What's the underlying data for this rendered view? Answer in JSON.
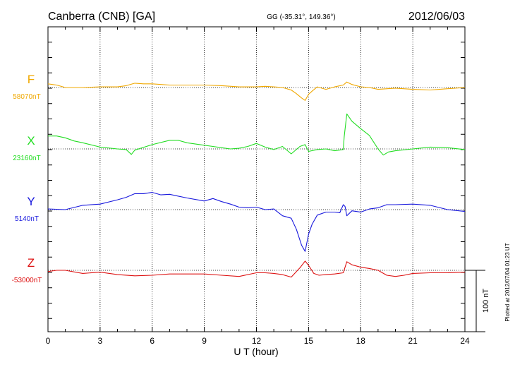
{
  "chart_data": {
    "type": "line",
    "title": "Canberra (CNB)  [GA]",
    "subtitle": "GG (-35.31°, 149.36°)",
    "date": "2012/06/03",
    "xlabel": "U T (hour)",
    "xlim": [
      0,
      24
    ],
    "x_ticks": [
      0,
      3,
      6,
      9,
      12,
      15,
      18,
      21,
      24
    ],
    "x_tick_labels": [
      "0",
      "3",
      "6",
      "9",
      "12",
      "15",
      "18",
      "21",
      "24"
    ],
    "grid": true,
    "scale_bar_label": "100 nT",
    "scale_bar_value_nT": 100,
    "plotted_note": "Plotted at 2012/07/04 01:23 UT",
    "series": [
      {
        "name": "F",
        "baseline_label": "58070nT",
        "baseline_nT": 58070,
        "color": "#f0a800",
        "x": [
          0,
          0.5,
          1,
          2,
          3,
          4,
          4.5,
          5,
          5.5,
          6,
          7,
          8,
          9,
          10,
          11,
          12,
          12.5,
          13,
          13.5,
          14,
          14.3,
          14.6,
          14.8,
          15,
          15.2,
          15.5,
          16,
          16.5,
          17,
          17.2,
          17.5,
          18,
          18.5,
          19,
          20,
          21,
          22,
          23,
          24
        ],
        "y": [
          58076,
          58074,
          58070,
          58070,
          58071,
          58071,
          58073,
          58077,
          58076,
          58076,
          58074,
          58074,
          58074,
          58073,
          58071,
          58071,
          58072,
          58071,
          58070,
          58066,
          58060,
          58053,
          58049,
          58059,
          58064,
          58071,
          58067,
          58071,
          58074,
          58079,
          58075,
          58071,
          58070,
          58067,
          58069,
          58067,
          58066,
          58068,
          58070
        ]
      },
      {
        "name": "X",
        "baseline_label": "23160nT",
        "baseline_nT": 23160,
        "color": "#22dd22",
        "x": [
          0,
          0.5,
          1,
          1.5,
          2,
          3,
          4,
          4.5,
          4.8,
          5,
          6,
          7,
          7.5,
          8,
          9,
          9.5,
          10,
          10.5,
          11,
          11.5,
          12,
          12.5,
          13,
          13.5,
          14,
          14.5,
          14.8,
          15,
          15.5,
          16,
          16.5,
          17,
          17.05,
          17.2,
          17.5,
          18,
          18.5,
          19,
          19.3,
          19.6,
          20,
          21,
          22,
          23,
          24
        ],
        "y": [
          23181,
          23181,
          23178,
          23173,
          23170,
          23163,
          23160,
          23159,
          23151,
          23158,
          23167,
          23174,
          23174,
          23170,
          23166,
          23164,
          23162,
          23160,
          23161,
          23164,
          23169,
          23163,
          23159,
          23164,
          23152,
          23164,
          23167,
          23156,
          23159,
          23160,
          23157,
          23159,
          23180,
          23217,
          23205,
          23193,
          23182,
          23160,
          23150,
          23155,
          23157,
          23160,
          23163,
          23162,
          23159
        ]
      },
      {
        "name": "Y",
        "baseline_label": "5140nT",
        "baseline_nT": 5140,
        "color": "#1818dd",
        "x": [
          0,
          1,
          2,
          3,
          4,
          4.5,
          5,
          5.5,
          6,
          6.5,
          7,
          8,
          9,
          9.5,
          10,
          10.5,
          11,
          11.5,
          12,
          12.5,
          13,
          13.5,
          14,
          14.3,
          14.6,
          14.8,
          15,
          15.2,
          15.5,
          16,
          16.5,
          16.8,
          17,
          17.1,
          17.2,
          17.5,
          18,
          18.5,
          19,
          19.5,
          20,
          21,
          22,
          23,
          24
        ],
        "y": [
          5141,
          5140,
          5147,
          5149,
          5156,
          5160,
          5166,
          5166,
          5168,
          5164,
          5165,
          5159,
          5154,
          5158,
          5153,
          5149,
          5144,
          5143,
          5144,
          5140,
          5141,
          5130,
          5126,
          5108,
          5082,
          5072,
          5100,
          5116,
          5131,
          5136,
          5136,
          5135,
          5148,
          5145,
          5130,
          5138,
          5136,
          5141,
          5143,
          5148,
          5148,
          5149,
          5147,
          5140,
          5137
        ]
      },
      {
        "name": "Z",
        "baseline_label": "-53000nT",
        "baseline_nT": -53000,
        "color": "#dd1111",
        "x": [
          0,
          0.5,
          1,
          2,
          3,
          4,
          5,
          6,
          7,
          8,
          9,
          10,
          11,
          12,
          12.5,
          13,
          13.5,
          14,
          14.5,
          14.8,
          15,
          15.3,
          15.6,
          16,
          16.5,
          17,
          17.2,
          17.5,
          18,
          18.5,
          19,
          19.5,
          20,
          20.5,
          21,
          22,
          23,
          24
        ],
        "y": [
          -53002,
          -53000,
          -53000,
          -53005,
          -53003,
          -53007,
          -53009,
          -53008,
          -53006,
          -53006,
          -53006,
          -53008,
          -53010,
          -53004,
          -53004,
          -53005,
          -53007,
          -53011,
          -52996,
          -52985,
          -52992,
          -53005,
          -53008,
          -53007,
          -53006,
          -53004,
          -52986,
          -52991,
          -52995,
          -52997,
          -53000,
          -53008,
          -53010,
          -53008,
          -53005,
          -53004,
          -53004,
          -53003
        ]
      }
    ]
  }
}
